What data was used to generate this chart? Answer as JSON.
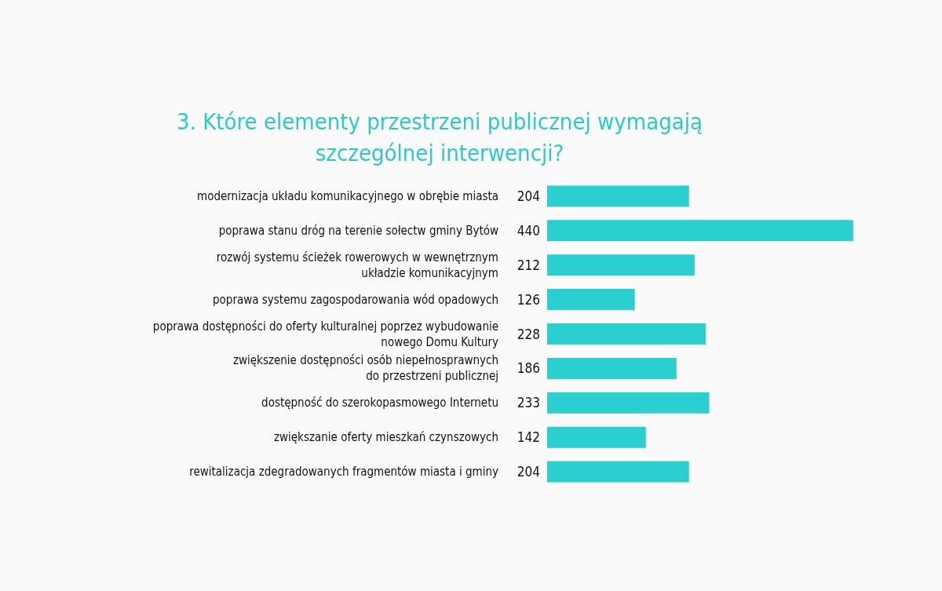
{
  "chart_data": {
    "type": "bar",
    "orientation": "horizontal",
    "title": "3. Które elementy przestrzeni publicznej wymagają\nszczególnej interwencji?",
    "categories": [
      "modernizacja układu komunikacyjnego w obrębie miasta",
      "poprawa stanu dróg na terenie sołectw gminy Bytów",
      "rozwój systemu ścieżek rowerowych w wewnętrznym\nukładzie komunikacyjnym",
      "poprawa systemu zagospodarowania wód opadowych",
      "poprawa dostępności do oferty kulturalnej poprzez wybudowanie\nnowego Domu Kultury",
      "zwiększenie dostępności osób niepełnosprawnych\ndo przestrzeni publicznej",
      "dostępność do szerokopasmowego Internetu",
      "zwiększanie oferty mieszkań czynszowych",
      "rewitalizacja zdegradowanych fragmentów miasta i gminy"
    ],
    "values": [
      204,
      440,
      212,
      126,
      228,
      186,
      233,
      142,
      204
    ],
    "color": "#2ccfcf",
    "data_labels": true
  }
}
